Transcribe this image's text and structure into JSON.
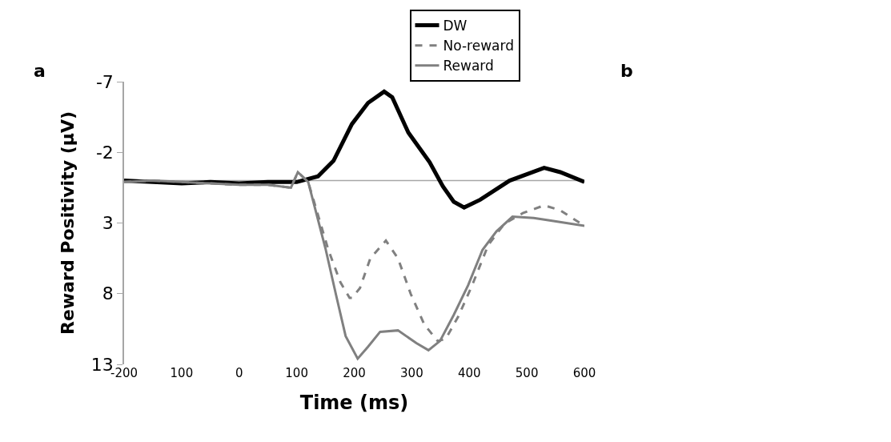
{
  "chart_data": {
    "type": "line",
    "xlabel": "Time (ms)",
    "ylabel": "Reward Positivity (µV)",
    "annotations": [
      "a",
      "b"
    ],
    "xlim": [
      -200,
      600
    ],
    "xticks": [
      -200,
      {
        "value": -100,
        "label": "100"
      },
      0,
      100,
      200,
      300,
      400,
      500,
      600
    ],
    "ylim": [
      13,
      -7
    ],
    "yticks": [
      -7,
      -2,
      3,
      8,
      13
    ],
    "grid": false,
    "legend": "top",
    "marker": "none",
    "ref_lines": [
      {
        "axis": "y",
        "value": 0,
        "color": "#a6a6a6"
      }
    ],
    "series": [
      {
        "name": "DW",
        "color": "#000000",
        "line_style": "solid",
        "x": [
          -200,
          -150,
          -100,
          -50,
          0,
          50,
          100,
          137,
          164,
          196,
          224,
          252,
          266,
          294,
          331,
          354,
          373,
          391,
          419,
          470,
          530,
          558,
          600
        ],
        "values": [
          0.0,
          0.1,
          0.2,
          0.1,
          0.2,
          0.1,
          0.1,
          -0.3,
          -1.4,
          -4.0,
          -5.5,
          -6.3,
          -5.9,
          -3.4,
          -1.3,
          0.4,
          1.5,
          1.9,
          1.35,
          0.0,
          -0.9,
          -0.6,
          0.1
        ]
      },
      {
        "name": "No-reward",
        "color": "#808080",
        "line_style": "dashed",
        "x": [
          -200,
          -150,
          -100,
          -50,
          0,
          50,
          90,
          102,
          120,
          155,
          176,
          192,
          196,
          210,
          228,
          255,
          276,
          298,
          322,
          345,
          359,
          381,
          405,
          433,
          461,
          493,
          530,
          558,
          600
        ],
        "values": [
          0.1,
          0.0,
          0.1,
          0.2,
          0.3,
          0.3,
          0.5,
          -0.6,
          0.1,
          4.9,
          7.2,
          8.3,
          8.3,
          7.6,
          5.5,
          4.25,
          5.5,
          8.0,
          10.2,
          11.35,
          11.2,
          9.6,
          7.4,
          4.55,
          3.05,
          2.3,
          1.75,
          2.1,
          3.2
        ]
      },
      {
        "name": "Reward",
        "color": "#808080",
        "line_style": "solid",
        "x": [
          -200,
          -150,
          -100,
          -50,
          0,
          50,
          90,
          102,
          120,
          150,
          169,
          185,
          206,
          224,
          245,
          276,
          308,
          329,
          349,
          373,
          398,
          423,
          447,
          475,
          512,
          544,
          600
        ],
        "values": [
          0.1,
          0.0,
          0.1,
          0.2,
          0.3,
          0.3,
          0.5,
          -0.6,
          0.1,
          4.8,
          8.2,
          11.0,
          12.6,
          11.75,
          10.7,
          10.6,
          11.5,
          12.0,
          11.35,
          9.5,
          7.4,
          4.9,
          3.6,
          2.55,
          2.65,
          2.85,
          3.2
        ]
      }
    ]
  }
}
